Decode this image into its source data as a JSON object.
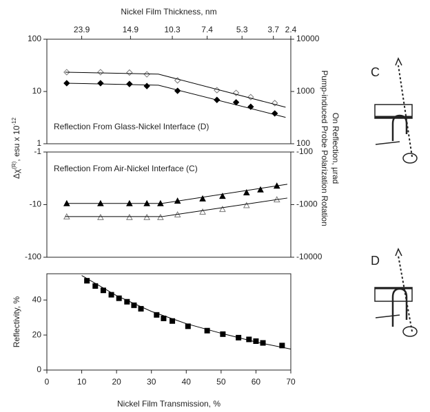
{
  "chart_data": [
    {
      "type": "scatter",
      "log_y": true,
      "x2label": "Nickel Film Thickness, nm",
      "x2ticks": [
        {
          "value": 10,
          "label": "23.9"
        },
        {
          "value": 24,
          "label": "14.9"
        },
        {
          "value": 36,
          "label": "10.3"
        },
        {
          "value": 46,
          "label": "7.4"
        },
        {
          "value": 56,
          "label": "5.3"
        },
        {
          "value": 65,
          "label": "3.7"
        },
        {
          "value": 70,
          "label": "2.4"
        }
      ],
      "ylabel": {
        "base": "Δχ",
        "sup1": "(R)",
        "mid": ", esu x 10",
        "sup2": "-12"
      },
      "y2label": [
        "Pump-induced Probe Polarization Rotation",
        "On Reflection, µrad"
      ],
      "annotation": "Reflection From Glass-Nickel Interface (D)",
      "xlim": [
        0,
        70
      ],
      "ylim": [
        1,
        100
      ],
      "yticks": [
        1,
        10,
        100
      ],
      "y2lim": [
        100,
        10000
      ],
      "y2ticks": [
        100,
        1000,
        10000
      ],
      "series": [
        {
          "marker": "diamond",
          "filled": false,
          "color": "#777777",
          "x": [
            5.7,
            15.4,
            23.7,
            28.7,
            37.5,
            48.8,
            54.3,
            58.5,
            65.4
          ],
          "values": [
            23.4,
            23.4,
            23.0,
            21.3,
            16.3,
            10.6,
            9.4,
            7.8,
            6.0
          ]
        },
        {
          "marker": "diamond",
          "filled": true,
          "color": "#000000",
          "x": [
            5.7,
            15.4,
            23.7,
            28.7,
            37.5,
            48.8,
            54.3,
            58.5,
            65.4
          ],
          "values": [
            14.4,
            14.4,
            13.9,
            12.7,
            10.3,
            6.9,
            6.2,
            5.1,
            3.8
          ]
        },
        {
          "marker": null,
          "color": "#000000",
          "x": [
            5.3,
            32,
            68.5
          ],
          "values": [
            23.4,
            21.5,
            5.0
          ]
        },
        {
          "marker": null,
          "color": "#000000",
          "x": [
            5.3,
            32,
            68.5
          ],
          "values": [
            14.4,
            13.2,
            3.2
          ]
        }
      ]
    },
    {
      "type": "scatter",
      "log_y": true,
      "annotation": "Reflection From Air-Nickel Interface (C)",
      "xlim": [
        0,
        70
      ],
      "ylim": [
        -100,
        -1
      ],
      "yticks": [
        -100,
        -10,
        -1
      ],
      "y2lim": [
        -10000,
        -100
      ],
      "y2ticks": [
        -10000,
        -1000,
        -100
      ],
      "series": [
        {
          "marker": "triangle",
          "filled": true,
          "color": "#000000",
          "x": [
            5.7,
            15.4,
            23.7,
            28.7,
            32.6,
            37.5,
            44.7,
            50.4,
            57.3,
            61.3,
            66.0
          ],
          "values": [
            -9.5,
            -9.5,
            -9.5,
            -9.5,
            -9.5,
            -8.5,
            -7.7,
            -6.9,
            -5.9,
            -5.2,
            -4.4
          ]
        },
        {
          "marker": "triangle",
          "filled": false,
          "color": "#777777",
          "x": [
            5.7,
            15.4,
            23.7,
            28.7,
            32.6,
            37.5,
            44.7,
            50.4,
            57.3,
            66.0
          ],
          "values": [
            -16.9,
            -17.4,
            -17.4,
            -17.4,
            -17.4,
            -15.5,
            -13.7,
            -12.2,
            -10.3,
            -8.0
          ]
        },
        {
          "marker": null,
          "color": "#000000",
          "x": [
            5.3,
            33,
            69
          ],
          "values": [
            -9.5,
            -9.5,
            -4.1
          ]
        },
        {
          "marker": null,
          "color": "#000000",
          "x": [
            5.3,
            33,
            69
          ],
          "values": [
            -16.9,
            -16.9,
            -7.5
          ]
        }
      ]
    },
    {
      "type": "scatter",
      "log_y": false,
      "xlabel": "Nickel Film Transmission, %",
      "ylabel": "Reflectivity, %",
      "xlim": [
        0,
        70
      ],
      "xticks": [
        0,
        10,
        20,
        30,
        40,
        50,
        60,
        70
      ],
      "ylim": [
        0,
        55
      ],
      "yticks": [
        0,
        20,
        40
      ],
      "series": [
        {
          "marker": "square",
          "filled": true,
          "color": "#000000",
          "x": [
            11.5,
            13.9,
            16.2,
            18.5,
            20.7,
            23,
            25,
            27,
            31.5,
            33.5,
            36,
            40.5,
            46,
            50.5,
            55,
            58,
            60,
            62,
            67.5
          ],
          "values": [
            51,
            48,
            45.5,
            43,
            41,
            39,
            37,
            35,
            31.5,
            29.5,
            28,
            25,
            22.5,
            20.5,
            18.5,
            17.5,
            16.5,
            15.5,
            14
          ]
        },
        {
          "marker": null,
          "color": "#000000",
          "x": [
            10,
            20,
            30,
            40,
            50,
            60,
            70
          ],
          "values": [
            54,
            42.5,
            33.5,
            26.5,
            21,
            16,
            12
          ]
        }
      ]
    }
  ],
  "diagrams": [
    {
      "label": "C"
    },
    {
      "label": "D"
    }
  ]
}
